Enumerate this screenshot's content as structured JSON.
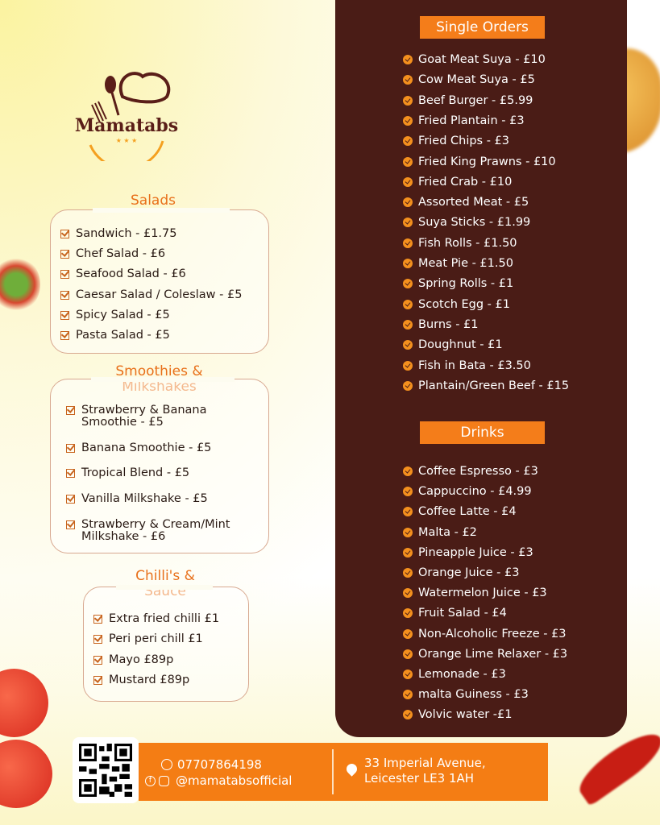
{
  "brand": {
    "name": "Mamatabs"
  },
  "salads": {
    "title": "Salads",
    "items": [
      "Sandwich - £1.75",
      "Chef Salad - £6",
      "Seafood Salad - £6",
      "Caesar Salad / Coleslaw - £5",
      "Spicy Salad - £5",
      "Pasta Salad - £5"
    ]
  },
  "smoothies": {
    "title1": "Smoothies &",
    "title2": "Milkshakes",
    "items": [
      [
        "Strawberry & Banana",
        "Smoothie - £5"
      ],
      [
        "Banana Smoothie - £5",
        ""
      ],
      [
        "Tropical Blend - £5",
        ""
      ],
      [
        "Vanilla Milkshake - £5",
        ""
      ],
      [
        "Strawberry & Cream/Mint",
        "Milkshake - £6"
      ]
    ]
  },
  "chilli": {
    "title1": "Chilli's &",
    "title2": "Sauce",
    "items": [
      "Extra fried chilli £1",
      "Peri peri chill £1",
      "Mayo £89p",
      "Mustard £89p"
    ]
  },
  "single": {
    "title": "Single Orders",
    "items": [
      "Goat Meat Suya - £10",
      "Cow Meat Suya - £5",
      "Beef Burger - £5.99",
      "Fried Plantain - £3",
      "Fried Chips - £3",
      "Fried King Prawns - £10",
      "Fried Crab - £10",
      "Assorted Meat - £5",
      "Suya Sticks - £1.99",
      "Fish Rolls - £1.50",
      "Meat Pie - £1.50",
      "Spring Rolls - £1",
      "Scotch Egg - £1",
      "Burns - £1",
      "Doughnut - £1",
      "Fish in Bata - £3.50",
      "Plantain/Green Beef - £15"
    ]
  },
  "drinks": {
    "title": "Drinks",
    "items": [
      "Coffee Espresso - £3",
      "Cappuccino - £4.99",
      "Coffee Latte - £4",
      "Malta - £2",
      "Pineapple Juice - £3",
      "Orange Juice - £3",
      "Watermelon Juice - £3",
      "Fruit Salad - £4",
      "Non-Alcoholic Freeze - £3",
      "Orange Lime Relaxer - £3",
      "Lemonade - £3",
      "malta Guiness - £3",
      "Volvic water -£1"
    ]
  },
  "footer": {
    "phone": "07707864198",
    "social": "@mamatabsofficial",
    "address1": "33 Imperial Avenue,",
    "address2": "Leicester LE3 1AH"
  },
  "colors": {
    "accent": "#f47d1a",
    "panel": "#4a1c16"
  }
}
